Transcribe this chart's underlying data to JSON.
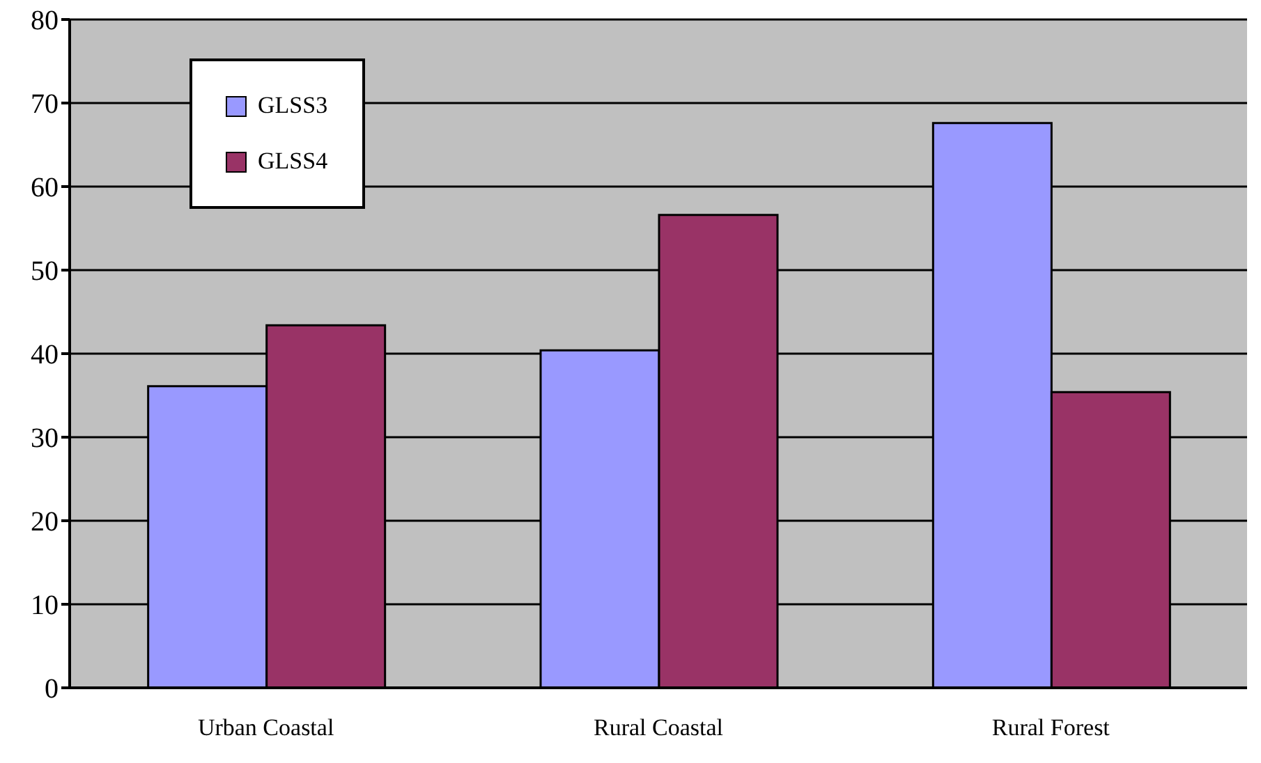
{
  "chart_data": {
    "type": "bar",
    "categories": [
      "Urban Coastal",
      "Rural Coastal",
      "Rural Forest"
    ],
    "series": [
      {
        "name": "GLSS3",
        "color": "#9999ff",
        "values": [
          36.1,
          40.4,
          67.6
        ]
      },
      {
        "name": "GLSS4",
        "color": "#993366",
        "values": [
          43.4,
          56.6,
          35.4
        ]
      }
    ],
    "ylim": [
      0,
      80
    ],
    "yticks": [
      0,
      10,
      20,
      30,
      40,
      50,
      60,
      70,
      80
    ],
    "grid": "y",
    "legend": "top left"
  }
}
